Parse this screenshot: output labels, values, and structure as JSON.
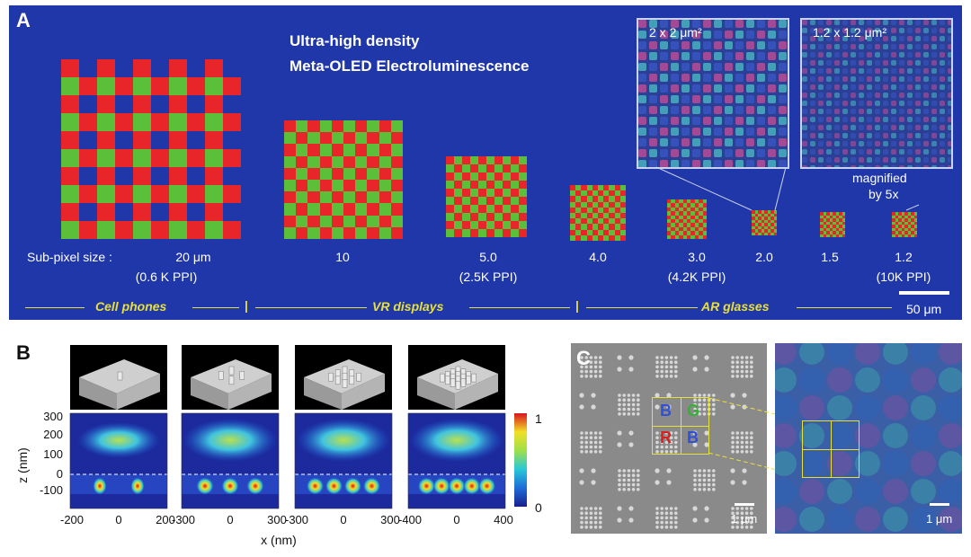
{
  "panelA": {
    "label": "A",
    "title_line1": "Ultra-high density",
    "title_line2": "Meta-OLED Electroluminescence",
    "inset1_label": "2 x 2 μm²",
    "inset2_label": "1.2 x 1.2 μm²",
    "magnified_line1": "magnified",
    "magnified_line2": "by 5x",
    "subpixel_prefix": "Sub-pixel size :",
    "sizes": [
      {
        "value": "20   μm",
        "ppi": "(0.6 K PPI)"
      },
      {
        "value": "10",
        "ppi": ""
      },
      {
        "value": "5.0",
        "ppi": "(2.5K PPI)"
      },
      {
        "value": "4.0",
        "ppi": ""
      },
      {
        "value": "3.0",
        "ppi": "(4.2K PPI)"
      },
      {
        "value": "2.0",
        "ppi": ""
      },
      {
        "value": "1.5",
        "ppi": ""
      },
      {
        "value": "1.2",
        "ppi": "(10K PPI)"
      }
    ],
    "applications": [
      "Cell phones",
      "VR displays",
      "AR glasses"
    ],
    "separator": "|",
    "scale_bar": "50 μm"
  },
  "panelB": {
    "label": "B",
    "ylabel": "z (nm)",
    "yticks": [
      "300",
      "200",
      "100",
      "0",
      "-100"
    ],
    "xlabel": "x (nm)",
    "xticks": [
      [
        "-200",
        "0",
        "200"
      ],
      [
        "-300",
        "0",
        "300"
      ],
      [
        "-300",
        "0",
        "300"
      ],
      [
        "-400",
        "0",
        "400"
      ]
    ],
    "colorbar_max": "1",
    "colorbar_min": "0"
  },
  "panelC": {
    "label": "C",
    "letters": [
      "B",
      "G",
      "R",
      "B"
    ],
    "scale_left": "1 μm",
    "scale_right": "1 μm"
  },
  "colors": {
    "red": "#e8262a",
    "green": "#5cbf3a",
    "blue_bg": "#1f37a8",
    "yellow": "#e8e03a"
  }
}
